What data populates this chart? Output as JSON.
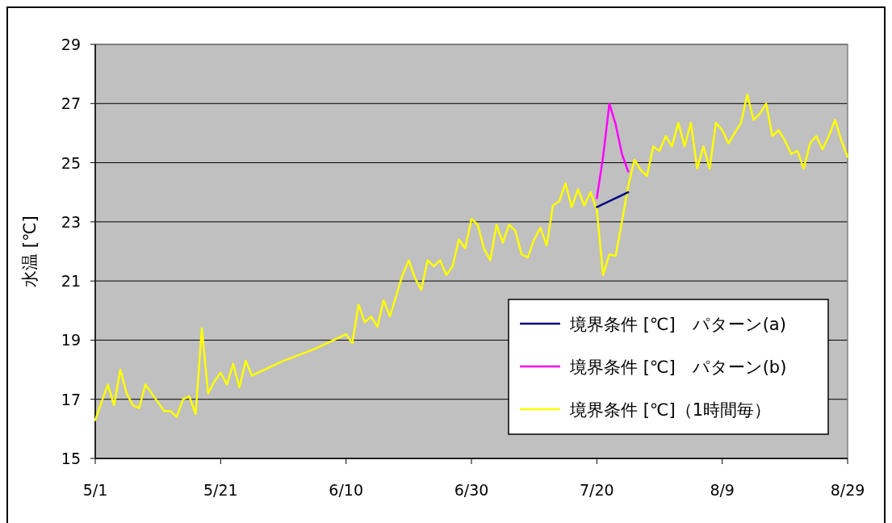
{
  "chart_data": {
    "type": "line",
    "ylabel": "水温 [℃]",
    "xlim": [
      "--05-01",
      "--08-29"
    ],
    "ylim": [
      15,
      29
    ],
    "xticks": [
      {
        "value": "--05-01",
        "label": "5/1"
      },
      {
        "value": "--05-21",
        "label": "5/21"
      },
      {
        "value": "--06-10",
        "label": "6/10"
      },
      {
        "value": "--06-30",
        "label": "6/30"
      },
      {
        "value": "--07-20",
        "label": "7/20"
      },
      {
        "value": "--08-09",
        "label": "8/9"
      },
      {
        "value": "--08-29",
        "label": "8/29"
      }
    ],
    "yticks": [
      15,
      17,
      19,
      21,
      23,
      25,
      27,
      29
    ],
    "grid": "y",
    "legend": "bottom right",
    "series": [
      {
        "name": "境界条件 [℃]　パターン(a)",
        "color": "#000080",
        "x": [
          "--07-20",
          "--07-25"
        ],
        "values": [
          23.5,
          24.0
        ]
      },
      {
        "name": "境界条件 [℃]　パターン(b)",
        "color": "#ff00ff",
        "x": [
          "--07-20",
          "--07-21",
          "--07-22",
          "--07-23",
          "--07-24",
          "--07-25"
        ],
        "values": [
          23.8,
          25.2,
          27.0,
          26.3,
          25.3,
          24.7
        ]
      },
      {
        "name": "境界条件 [℃]（1時間毎）",
        "color": "#ffff00",
        "x": [
          "--05-01",
          "--05-02",
          "--05-03",
          "--05-04",
          "--05-05",
          "--05-06",
          "--05-07",
          "--05-08",
          "--05-09",
          "--05-10",
          "--05-11",
          "--05-12",
          "--05-13",
          "--05-14",
          "--05-15",
          "--05-16",
          "--05-17",
          "--05-18",
          "--05-19",
          "--05-20",
          "--05-21",
          "--05-22",
          "--05-23",
          "--05-24",
          "--05-25",
          "--05-26",
          "--05-27",
          "--05-31",
          "--06-05",
          "--06-10",
          "--06-11",
          "--06-12",
          "--06-13",
          "--06-14",
          "--06-15",
          "--06-16",
          "--06-17",
          "--06-18",
          "--06-19",
          "--06-20",
          "--06-21",
          "--06-22",
          "--06-23",
          "--06-24",
          "--06-25",
          "--06-26",
          "--06-27",
          "--06-28",
          "--06-29",
          "--06-30",
          "--07-01",
          "--07-02",
          "--07-03",
          "--07-04",
          "--07-05",
          "--07-06",
          "--07-07",
          "--07-08",
          "--07-09",
          "--07-10",
          "--07-11",
          "--07-12",
          "--07-13",
          "--07-14",
          "--07-15",
          "--07-16",
          "--07-17",
          "--07-18",
          "--07-19",
          "--07-20",
          "--07-21",
          "--07-22",
          "--07-23",
          "--07-24",
          "--07-25",
          "--07-26",
          "--07-27",
          "--07-28",
          "--07-29",
          "--07-30",
          "--07-31",
          "--08-01",
          "--08-02",
          "--08-03",
          "--08-04",
          "--08-05",
          "--08-06",
          "--08-07",
          "--08-08",
          "--08-09",
          "--08-10",
          "--08-11",
          "--08-12",
          "--08-13",
          "--08-14",
          "--08-15",
          "--08-16",
          "--08-17",
          "--08-18",
          "--08-19",
          "--08-20",
          "--08-21",
          "--08-22",
          "--08-23",
          "--08-24",
          "--08-25",
          "--08-26",
          "--08-27",
          "--08-28",
          "--08-29"
        ],
        "values": [
          16.3,
          16.9,
          17.5,
          16.8,
          18.0,
          17.2,
          16.8,
          16.7,
          17.5,
          17.2,
          16.9,
          16.6,
          16.6,
          16.4,
          17.0,
          17.1,
          16.5,
          19.4,
          17.2,
          17.6,
          17.9,
          17.5,
          18.2,
          17.4,
          18.3,
          17.8,
          17.9,
          18.3,
          18.7,
          19.2,
          18.9,
          20.2,
          19.6,
          19.8,
          19.45,
          20.35,
          19.8,
          20.5,
          21.2,
          21.7,
          21.1,
          20.7,
          21.7,
          21.5,
          21.7,
          21.2,
          21.5,
          22.4,
          22.1,
          23.1,
          22.9,
          22.1,
          21.7,
          22.9,
          22.3,
          22.9,
          22.7,
          21.9,
          21.8,
          22.4,
          22.8,
          22.2,
          23.55,
          23.7,
          24.3,
          23.5,
          24.1,
          23.55,
          24.0,
          23.4,
          21.2,
          21.9,
          21.85,
          23.0,
          24.2,
          25.1,
          24.75,
          24.55,
          25.55,
          25.4,
          25.9,
          25.55,
          26.35,
          25.55,
          26.35,
          24.8,
          25.55,
          24.8,
          26.35,
          26.1,
          25.65,
          26.0,
          26.35,
          27.3,
          26.45,
          26.65,
          27.0,
          25.9,
          26.1,
          25.75,
          25.3,
          25.4,
          24.8,
          25.65,
          25.9,
          25.45,
          25.9,
          26.45,
          25.75,
          25.2
        ]
      }
    ]
  }
}
